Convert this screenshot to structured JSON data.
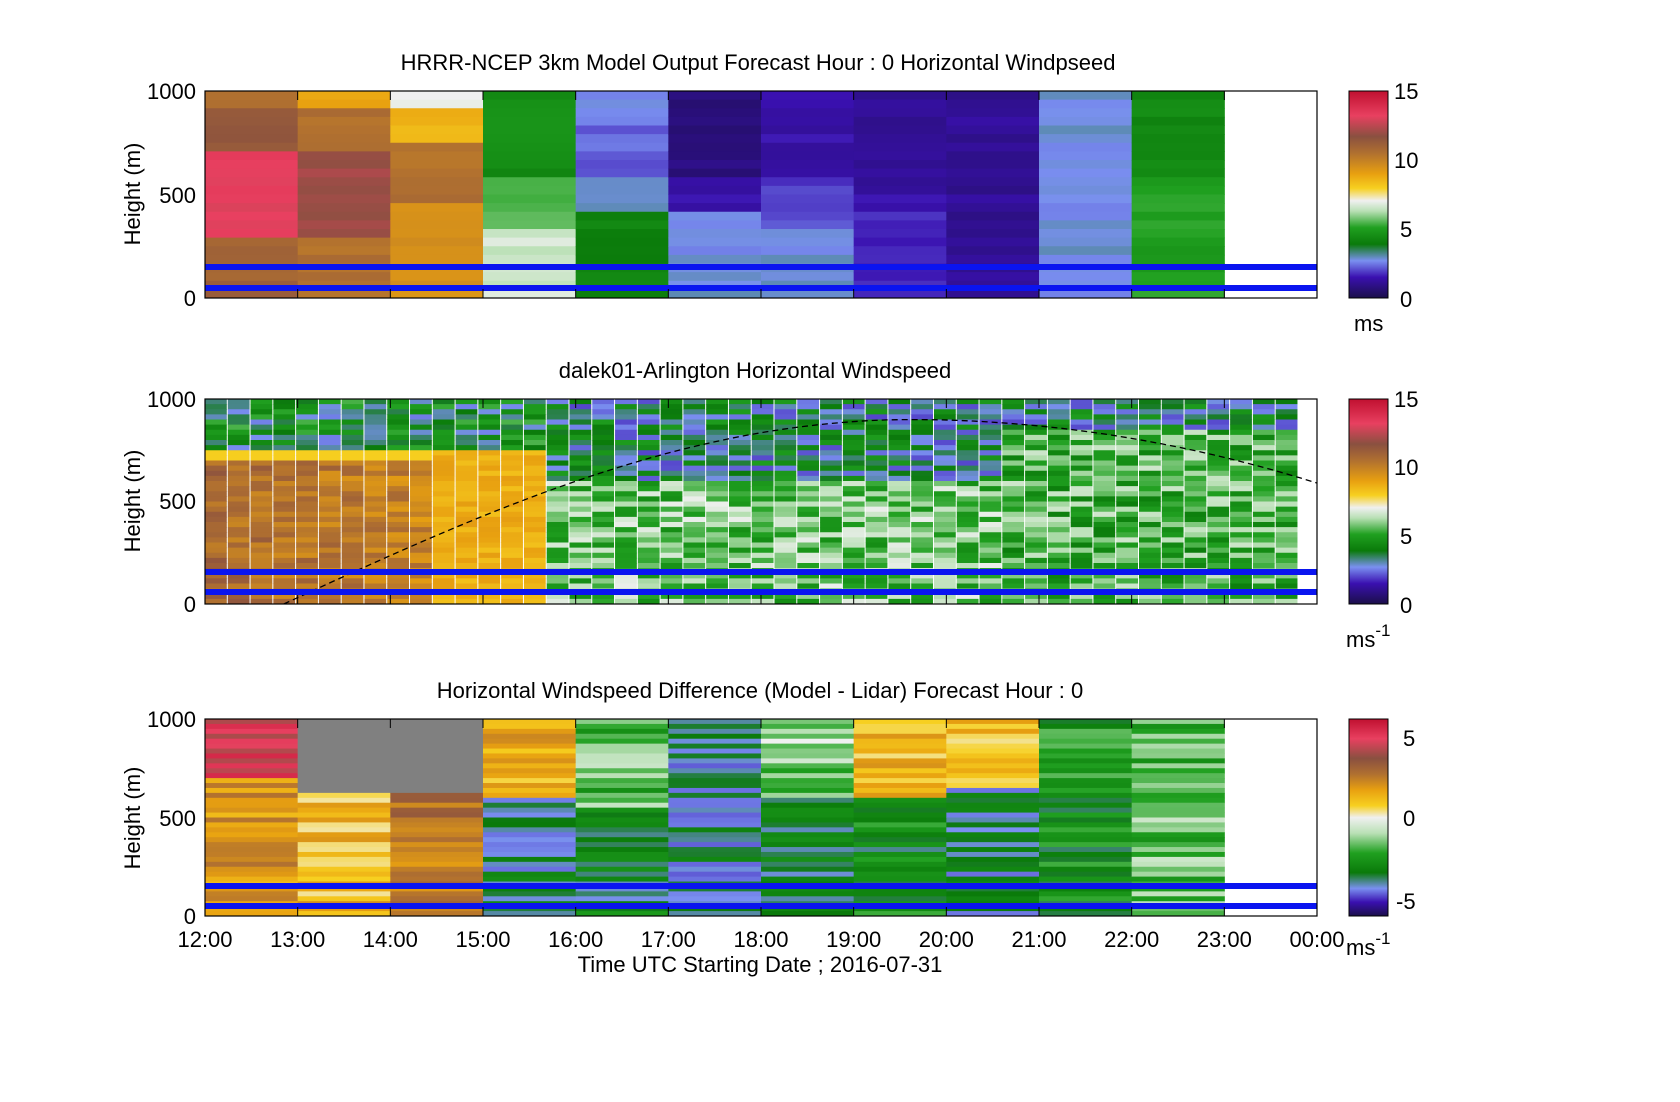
{
  "chart_data": [
    {
      "type": "heatmap",
      "title": "HRRR-NCEP 3km Model Output   Forecast Hour : 0 Horizontal Windpseed",
      "ylabel": "Height (m)",
      "xlabel": "",
      "ylim": [
        0,
        1000
      ],
      "yticks": [
        "0",
        "500",
        "1000"
      ],
      "colorbar": {
        "ticks": [
          "0",
          "5",
          "10",
          "15"
        ],
        "label": "ms"
      },
      "columns": [
        {
          "start": "12:00",
          "shade": "hot-pink"
        },
        {
          "start": "13:00",
          "shade": "brown-orange"
        },
        {
          "start": "14:00",
          "shade": "yellow-brown"
        },
        {
          "start": "15:00",
          "shade": "green"
        },
        {
          "start": "16:00",
          "shade": "blue-green"
        },
        {
          "start": "17:00",
          "shade": "dark-purple"
        },
        {
          "start": "18:00",
          "shade": "purple-blue"
        },
        {
          "start": "19:00",
          "shade": "indigo"
        },
        {
          "start": "20:00",
          "shade": "indigo"
        },
        {
          "start": "21:00",
          "shade": "light-blue"
        },
        {
          "start": "22:00",
          "shade": "green"
        }
      ],
      "reference_lines_m": [
        150,
        50
      ]
    },
    {
      "type": "heatmap",
      "title": "dalek01-Arlington  Horizontal Windspeed",
      "ylabel": "Height (m)",
      "xlabel": "",
      "ylim": [
        0,
        1000
      ],
      "yticks": [
        "0",
        "500",
        "1000"
      ],
      "colorbar": {
        "ticks": [
          "0",
          "5",
          "10",
          "15"
        ],
        "label": "ms",
        "label_sup": "-1"
      },
      "reference_lines_m": [
        150,
        50
      ],
      "mixing_layer": "dashed curve rising from 0 m near 12:50 to ~900 m near 19:30, falling to ~580 m at 00:00"
    },
    {
      "type": "heatmap",
      "title": "Horizontal Windspeed Difference (Model - Lidar) Forecast Hour : 0",
      "ylabel": "Height (m)",
      "xlabel": "Time UTC  Starting Date ; 2016-07-31",
      "ylim": [
        0,
        1000
      ],
      "yticks": [
        "0",
        "500",
        "1000"
      ],
      "xticks": [
        "12:00",
        "13:00",
        "14:00",
        "15:00",
        "16:00",
        "17:00",
        "18:00",
        "19:00",
        "20:00",
        "21:00",
        "22:00",
        "23:00",
        "00:00"
      ],
      "colorbar": {
        "ticks": [
          "-5",
          "0",
          "5"
        ],
        "label": "ms",
        "label_sup": "-1"
      },
      "reference_lines_m": [
        150,
        50
      ]
    }
  ]
}
